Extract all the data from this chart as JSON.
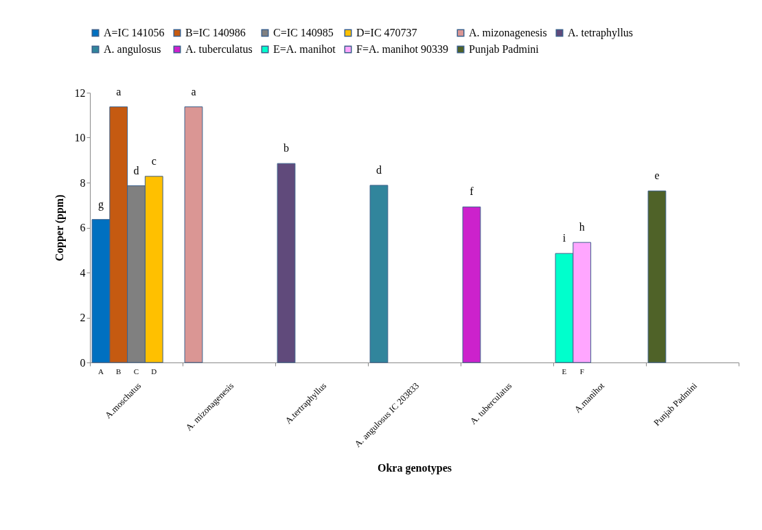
{
  "chart_data": {
    "type": "bar",
    "xlabel": "Okra genotypes",
    "ylabel": "Copper (ppm)",
    "categories": [
      "A.moschatus",
      "A. mizonagenesis",
      "A.tertraphyllus",
      "A. angulosus IC 203833",
      "A. tuberculatus",
      "A.manihot",
      "Punjab Padmini"
    ],
    "series": [
      {
        "name": "A=IC 141056",
        "color": "#0070c0",
        "values": [
          6.36,
          null,
          null,
          null,
          null,
          null,
          null
        ],
        "value_labels": [
          "g",
          null,
          null,
          null,
          null,
          null,
          null
        ]
      },
      {
        "name": "B=IC 140986",
        "color": "#c55a11",
        "values": [
          11.37,
          null,
          null,
          null,
          null,
          null,
          null
        ],
        "value_labels": [
          "a",
          null,
          null,
          null,
          null,
          null,
          null
        ]
      },
      {
        "name": "C=IC 140985",
        "color": "#808080",
        "values": [
          7.86,
          null,
          null,
          null,
          null,
          null,
          null
        ],
        "value_labels": [
          "d",
          null,
          null,
          null,
          null,
          null,
          null
        ]
      },
      {
        "name": "D=IC 470737",
        "color": "#ffc000",
        "values": [
          8.28,
          null,
          null,
          null,
          null,
          null,
          null
        ],
        "value_labels": [
          "c",
          null,
          null,
          null,
          null,
          null,
          null
        ]
      },
      {
        "name": "A. mizonagenesis",
        "color": "#da9694",
        "values": [
          null,
          11.37,
          null,
          null,
          null,
          null,
          null
        ],
        "value_labels": [
          null,
          "a",
          null,
          null,
          null,
          null,
          null
        ]
      },
      {
        "name": "A. tetraphyllus",
        "color": "#604a7b",
        "values": [
          null,
          null,
          8.85,
          null,
          null,
          null,
          null
        ],
        "value_labels": [
          null,
          null,
          "b",
          null,
          null,
          null,
          null
        ]
      },
      {
        "name": "A. angulosus",
        "color": "#31859c",
        "values": [
          null,
          null,
          null,
          7.88,
          null,
          null,
          null
        ],
        "value_labels": [
          null,
          null,
          null,
          "d",
          null,
          null,
          null
        ]
      },
      {
        "name": "A. tuberculatus",
        "color": "#cc22cc",
        "values": [
          null,
          null,
          null,
          null,
          6.92,
          null,
          null
        ],
        "value_labels": [
          null,
          null,
          null,
          null,
          "f",
          null,
          null
        ]
      },
      {
        "name": "E=A. manihot",
        "color": "#00ffcc",
        "values": [
          null,
          null,
          null,
          null,
          null,
          4.85,
          null
        ],
        "value_labels": [
          null,
          null,
          null,
          null,
          null,
          "i",
          null
        ]
      },
      {
        "name": "F=A. manihot 90339",
        "color": "#ffa6ff",
        "values": [
          null,
          null,
          null,
          null,
          null,
          5.34,
          null
        ],
        "value_labels": [
          null,
          null,
          null,
          null,
          null,
          "h",
          null
        ]
      },
      {
        "name": "Punjab Padmini",
        "color": "#4f6228",
        "values": [
          null,
          null,
          null,
          null,
          null,
          null,
          7.63
        ],
        "value_labels": [
          null,
          null,
          null,
          null,
          null,
          null,
          "e"
        ]
      }
    ],
    "annotations": [
      "A",
      "B",
      "C",
      "D",
      "E",
      "F"
    ],
    "ylim": [
      0,
      12
    ],
    "yticks": [
      0,
      2,
      4,
      6,
      8,
      10,
      12
    ],
    "grid": false,
    "legend": "top"
  }
}
